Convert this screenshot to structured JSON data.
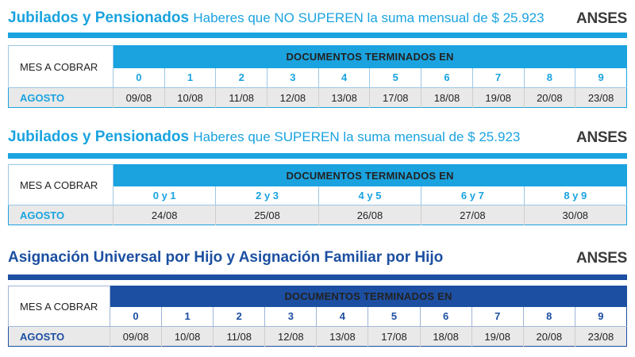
{
  "section1": {
    "title_bold": "Jubilados y Pensionados",
    "title_light": "Haberes que NO SUPEREN la suma mensual de $ 25.923",
    "brand": "ANSES",
    "mes_label": "MES A COBRAR",
    "doc_header": "DOCUMENTOS TERMINADOS EN",
    "month": "AGOSTO",
    "digits": [
      "0",
      "1",
      "2",
      "3",
      "4",
      "5",
      "6",
      "7",
      "8",
      "9"
    ],
    "dates": [
      "09/08",
      "10/08",
      "11/08",
      "12/08",
      "13/08",
      "17/08",
      "18/08",
      "19/08",
      "20/08",
      "23/08"
    ]
  },
  "section2": {
    "title_bold": "Jubilados y Pensionados",
    "title_light": "Haberes que SUPEREN la suma mensual de $ 25.923",
    "brand": "ANSES",
    "mes_label": "MES A COBRAR",
    "doc_header": "DOCUMENTOS TERMINADOS EN",
    "month": "AGOSTO",
    "digits": [
      "0 y 1",
      "2 y 3",
      "4 y 5",
      "6 y 7",
      "8 y 9"
    ],
    "dates": [
      "24/08",
      "25/08",
      "26/08",
      "27/08",
      "30/08"
    ]
  },
  "section3": {
    "title_bold": "Asignación Universal por Hijo y Asignación Familiar por Hijo",
    "brand": "ANSES",
    "mes_label": "MES A COBRAR",
    "doc_header": "DOCUMENTOS TERMINADOS EN",
    "month": "AGOSTO",
    "digits": [
      "0",
      "1",
      "2",
      "3",
      "4",
      "5",
      "6",
      "7",
      "8",
      "9"
    ],
    "dates": [
      "09/08",
      "10/08",
      "11/08",
      "12/08",
      "13/08",
      "17/08",
      "18/08",
      "19/08",
      "20/08",
      "23/08"
    ]
  },
  "colors": {
    "light_blue": "#1aa3df",
    "dark_blue": "#1c4fa1",
    "light_blue_text": "#1aa3df",
    "dark_blue_text": "#1c4fa1"
  }
}
